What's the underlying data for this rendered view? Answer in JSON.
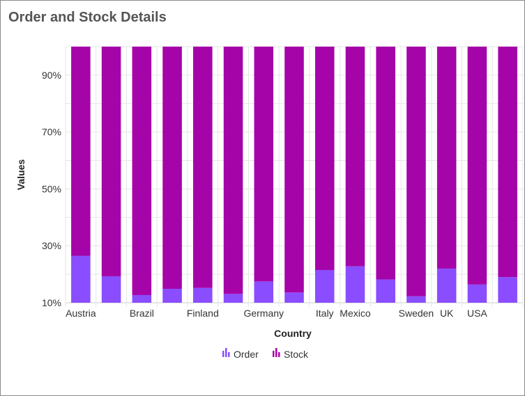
{
  "chart_data": {
    "type": "bar",
    "stacked": "percent",
    "title": "Order and Stock Details",
    "xlabel": "Country",
    "ylabel": "Values",
    "ylim": [
      10,
      100
    ],
    "y_ticks": [
      "10%",
      "30%",
      "50%",
      "70%",
      "90%"
    ],
    "grid": true,
    "legend_position": "bottom",
    "categories": [
      "Austria",
      "",
      "Brazil",
      "",
      "Finland",
      "",
      "Germany",
      "",
      "Italy",
      "Mexico",
      "",
      "Sweden",
      "UK",
      "USA",
      ""
    ],
    "series": [
      {
        "name": "Order",
        "color": "#8a4dff",
        "values": [
          26.5,
          19.3,
          12.7,
          14.9,
          15.2,
          13.1,
          17.5,
          13.6,
          21.5,
          22.8,
          18.2,
          12.3,
          22.0,
          16.4,
          19.0
        ]
      },
      {
        "name": "Stock",
        "color": "#a504a8",
        "values": [
          73.5,
          80.7,
          87.3,
          85.1,
          84.8,
          86.9,
          82.5,
          86.4,
          78.5,
          77.2,
          81.8,
          87.7,
          78.0,
          83.6,
          81.0
        ]
      }
    ]
  }
}
